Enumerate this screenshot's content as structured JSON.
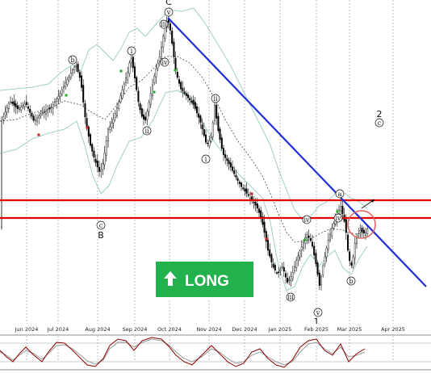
{
  "chart_data": {
    "type": "candlestick",
    "x_tick_labels": [
      "Jun 2024",
      "Jul 2024",
      "Aug 2024",
      "Sep 2024",
      "Oct 2024",
      "Nov 2024",
      "Dec 2024",
      "Jan 2025",
      "Feb 2025",
      "Mar 2025",
      "Apr 2025"
    ],
    "badge": {
      "label": "LONG",
      "color": "#22b14c",
      "direction": "up"
    },
    "wave_labels": [
      {
        "text": "b"
      },
      {
        "text": "c"
      },
      {
        "text": "B"
      },
      {
        "text": "i"
      },
      {
        "text": "ii"
      },
      {
        "text": "iii"
      },
      {
        "text": "iv"
      },
      {
        "text": "v"
      },
      {
        "text": "C"
      },
      {
        "text": "i"
      },
      {
        "text": "ii"
      },
      {
        "text": "iii"
      },
      {
        "text": "iv"
      },
      {
        "text": "v"
      },
      {
        "text": "1"
      },
      {
        "text": "iv"
      },
      {
        "text": "a"
      },
      {
        "text": "b"
      },
      {
        "text": "2"
      },
      {
        "text": "c"
      }
    ],
    "colors": {
      "trendline": "#1f2fd6",
      "resistance": "#e00000",
      "bollinger": "#9fd0c4",
      "midline": "#333333",
      "oscillator_main": "#8b0000",
      "oscillator_signal": "#999999",
      "badge": "#22b14c"
    },
    "indicators": [
      "bollinger_bands",
      "oscillator"
    ]
  }
}
